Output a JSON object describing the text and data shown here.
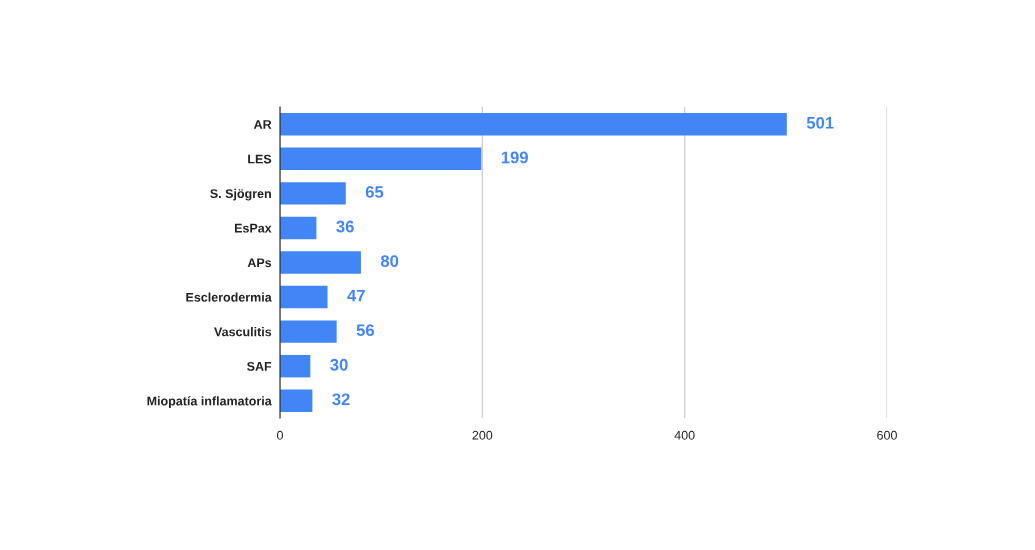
{
  "chart_data": {
    "type": "bar",
    "orientation": "horizontal",
    "categories": [
      "AR",
      "LES",
      "S. Sjögren",
      "EsPax",
      "APs",
      "Esclerodermia",
      "Vasculitis",
      "SAF",
      "Miopatía inflamatoria"
    ],
    "values": [
      501,
      199,
      65,
      36,
      80,
      47,
      56,
      30,
      32
    ],
    "color": "#4285f4",
    "xlim": [
      0,
      600
    ],
    "xticks": [
      0,
      200,
      400,
      600
    ],
    "grid": "x",
    "data_labels": true
  }
}
